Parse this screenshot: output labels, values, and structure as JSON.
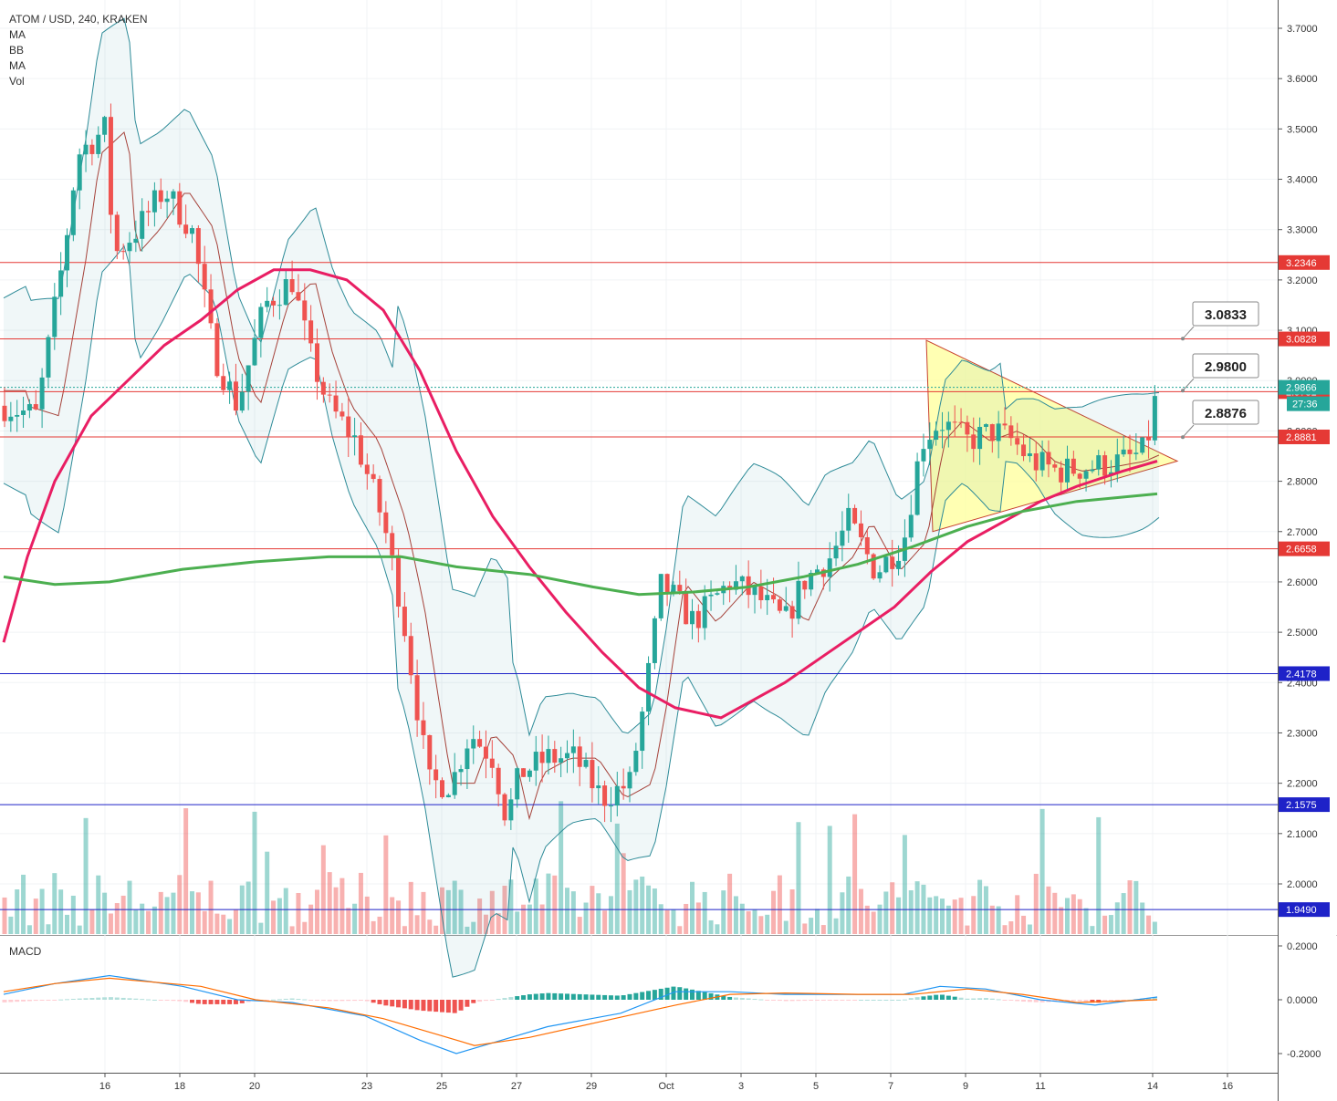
{
  "header": {
    "symbol_line": "ATOM / USD, 240, KRAKEN",
    "indicators": [
      "MA",
      "BB",
      "MA",
      "Vol"
    ],
    "macd_label": "MACD"
  },
  "countdown": "27:36",
  "colors": {
    "up": "#26a69a",
    "down": "#ef5350",
    "resistance": "#e53935",
    "support": "#1e22c8",
    "ma_fast": "#e91e63",
    "ma_slow": "#4caf50",
    "bb": "#2e8b98",
    "triangle": "#ffff99",
    "macd_line": "#2196f3",
    "signal_line": "#ff6d00"
  },
  "chart_data": {
    "type": "candlestick",
    "y_ticks": [
      "3.7000",
      "3.6000",
      "3.5000",
      "3.4000",
      "3.3000",
      "3.2000",
      "3.1000",
      "3.0000",
      "2.9000",
      "2.8000",
      "2.7000",
      "2.6000",
      "2.5000",
      "2.4000",
      "2.3000",
      "2.2000",
      "2.1000",
      "2.0000"
    ],
    "x_ticks": [
      "16",
      "18",
      "20",
      "23",
      "25",
      "27",
      "29",
      "Oct",
      "3",
      "5",
      "7",
      "9",
      "11",
      "14",
      "16"
    ],
    "price_range": [
      1.9,
      3.74
    ],
    "horizontal_levels": [
      {
        "value": 3.2346,
        "label": "3.2346",
        "kind": "resistance"
      },
      {
        "value": 3.0828,
        "label": "3.0828",
        "kind": "resistance"
      },
      {
        "value": 2.9781,
        "label": "2.9781",
        "kind": "resistance"
      },
      {
        "value": 2.8881,
        "label": "2.8881",
        "kind": "resistance"
      },
      {
        "value": 2.6658,
        "label": "2.6658",
        "kind": "resistance"
      },
      {
        "value": 2.4178,
        "label": "2.4178",
        "kind": "support"
      },
      {
        "value": 2.1575,
        "label": "2.1575",
        "kind": "support"
      },
      {
        "value": 1.949,
        "label": "1.9490",
        "kind": "support"
      }
    ],
    "last_price": {
      "value": 2.9866,
      "label": "2.9866"
    },
    "callouts": [
      {
        "label": "3.0833",
        "value": 3.0833
      },
      {
        "label": "2.9800",
        "value": 2.98
      },
      {
        "label": "2.8876",
        "value": 2.8876
      }
    ],
    "triangle_pattern": [
      [
        7.8,
        3.08
      ],
      [
        8.0,
        2.7
      ],
      [
        14.6,
        2.84
      ]
    ],
    "ma_slow": [
      [
        0,
        2.61
      ],
      [
        1,
        2.595
      ],
      [
        2,
        2.6
      ],
      [
        3,
        2.615
      ],
      [
        4,
        2.625
      ],
      [
        5,
        2.645
      ],
      [
        6,
        2.65
      ],
      [
        7,
        2.645
      ],
      [
        8,
        2.63
      ],
      [
        9,
        2.61
      ],
      [
        10,
        2.59
      ],
      [
        11,
        2.575
      ],
      [
        12,
        2.575
      ],
      [
        13,
        2.595
      ],
      [
        14,
        2.62
      ],
      [
        15,
        2.655
      ],
      [
        16,
        2.7
      ],
      [
        17,
        2.74
      ],
      [
        18,
        2.77
      ],
      [
        19,
        2.78
      ]
    ],
    "ma_fast": [
      [
        0,
        2.48
      ],
      [
        1,
        2.62
      ],
      [
        2,
        2.83
      ],
      [
        3,
        2.98
      ],
      [
        4,
        3.09
      ],
      [
        5,
        3.16
      ],
      [
        6,
        3.22
      ],
      [
        7,
        3.21
      ],
      [
        8,
        3.13
      ],
      [
        9,
        2.93
      ],
      [
        10,
        2.73
      ],
      [
        11,
        2.56
      ],
      [
        12,
        2.41
      ],
      [
        13,
        2.33
      ],
      [
        14,
        2.36
      ],
      [
        15,
        2.45
      ],
      [
        16,
        2.52
      ],
      [
        17,
        2.62
      ],
      [
        18,
        2.73
      ],
      [
        19,
        2.84
      ]
    ],
    "bb_upper": [
      [
        0,
        2.95
      ],
      [
        1,
        3.25
      ],
      [
        2,
        3.42
      ],
      [
        3,
        3.42
      ],
      [
        4,
        3.35
      ],
      [
        5,
        3.3
      ],
      [
        6,
        3.22
      ],
      [
        7,
        3.15
      ],
      [
        8,
        2.9
      ],
      [
        9,
        2.5
      ],
      [
        10,
        2.3
      ],
      [
        11,
        2.25
      ],
      [
        12,
        2.32
      ],
      [
        13,
        2.58
      ],
      [
        14,
        2.65
      ],
      [
        15,
        2.8
      ],
      [
        16,
        2.98
      ],
      [
        17,
        3.0
      ],
      [
        18,
        2.9
      ],
      [
        19,
        2.84
      ]
    ],
    "bb_lower": [
      [
        0,
        2.5
      ],
      [
        1,
        2.75
      ],
      [
        2,
        2.96
      ],
      [
        3,
        3.04
      ],
      [
        4,
        2.98
      ],
      [
        5,
        2.85
      ],
      [
        6,
        2.6
      ],
      [
        7,
        2.35
      ],
      [
        8,
        2.2
      ],
      [
        9,
        2.15
      ],
      [
        10,
        2.15
      ],
      [
        11,
        2.16
      ],
      [
        12,
        2.38
      ],
      [
        13,
        2.52
      ],
      [
        14,
        2.55
      ],
      [
        15,
        2.62
      ],
      [
        16,
        2.7
      ],
      [
        17,
        2.76
      ],
      [
        18,
        2.79
      ],
      [
        19,
        2.8
      ]
    ],
    "macd_range": [
      -0.23,
      0.23
    ],
    "macd_ticks": [
      "0.2000",
      "0.0000",
      "-0.2000"
    ]
  }
}
